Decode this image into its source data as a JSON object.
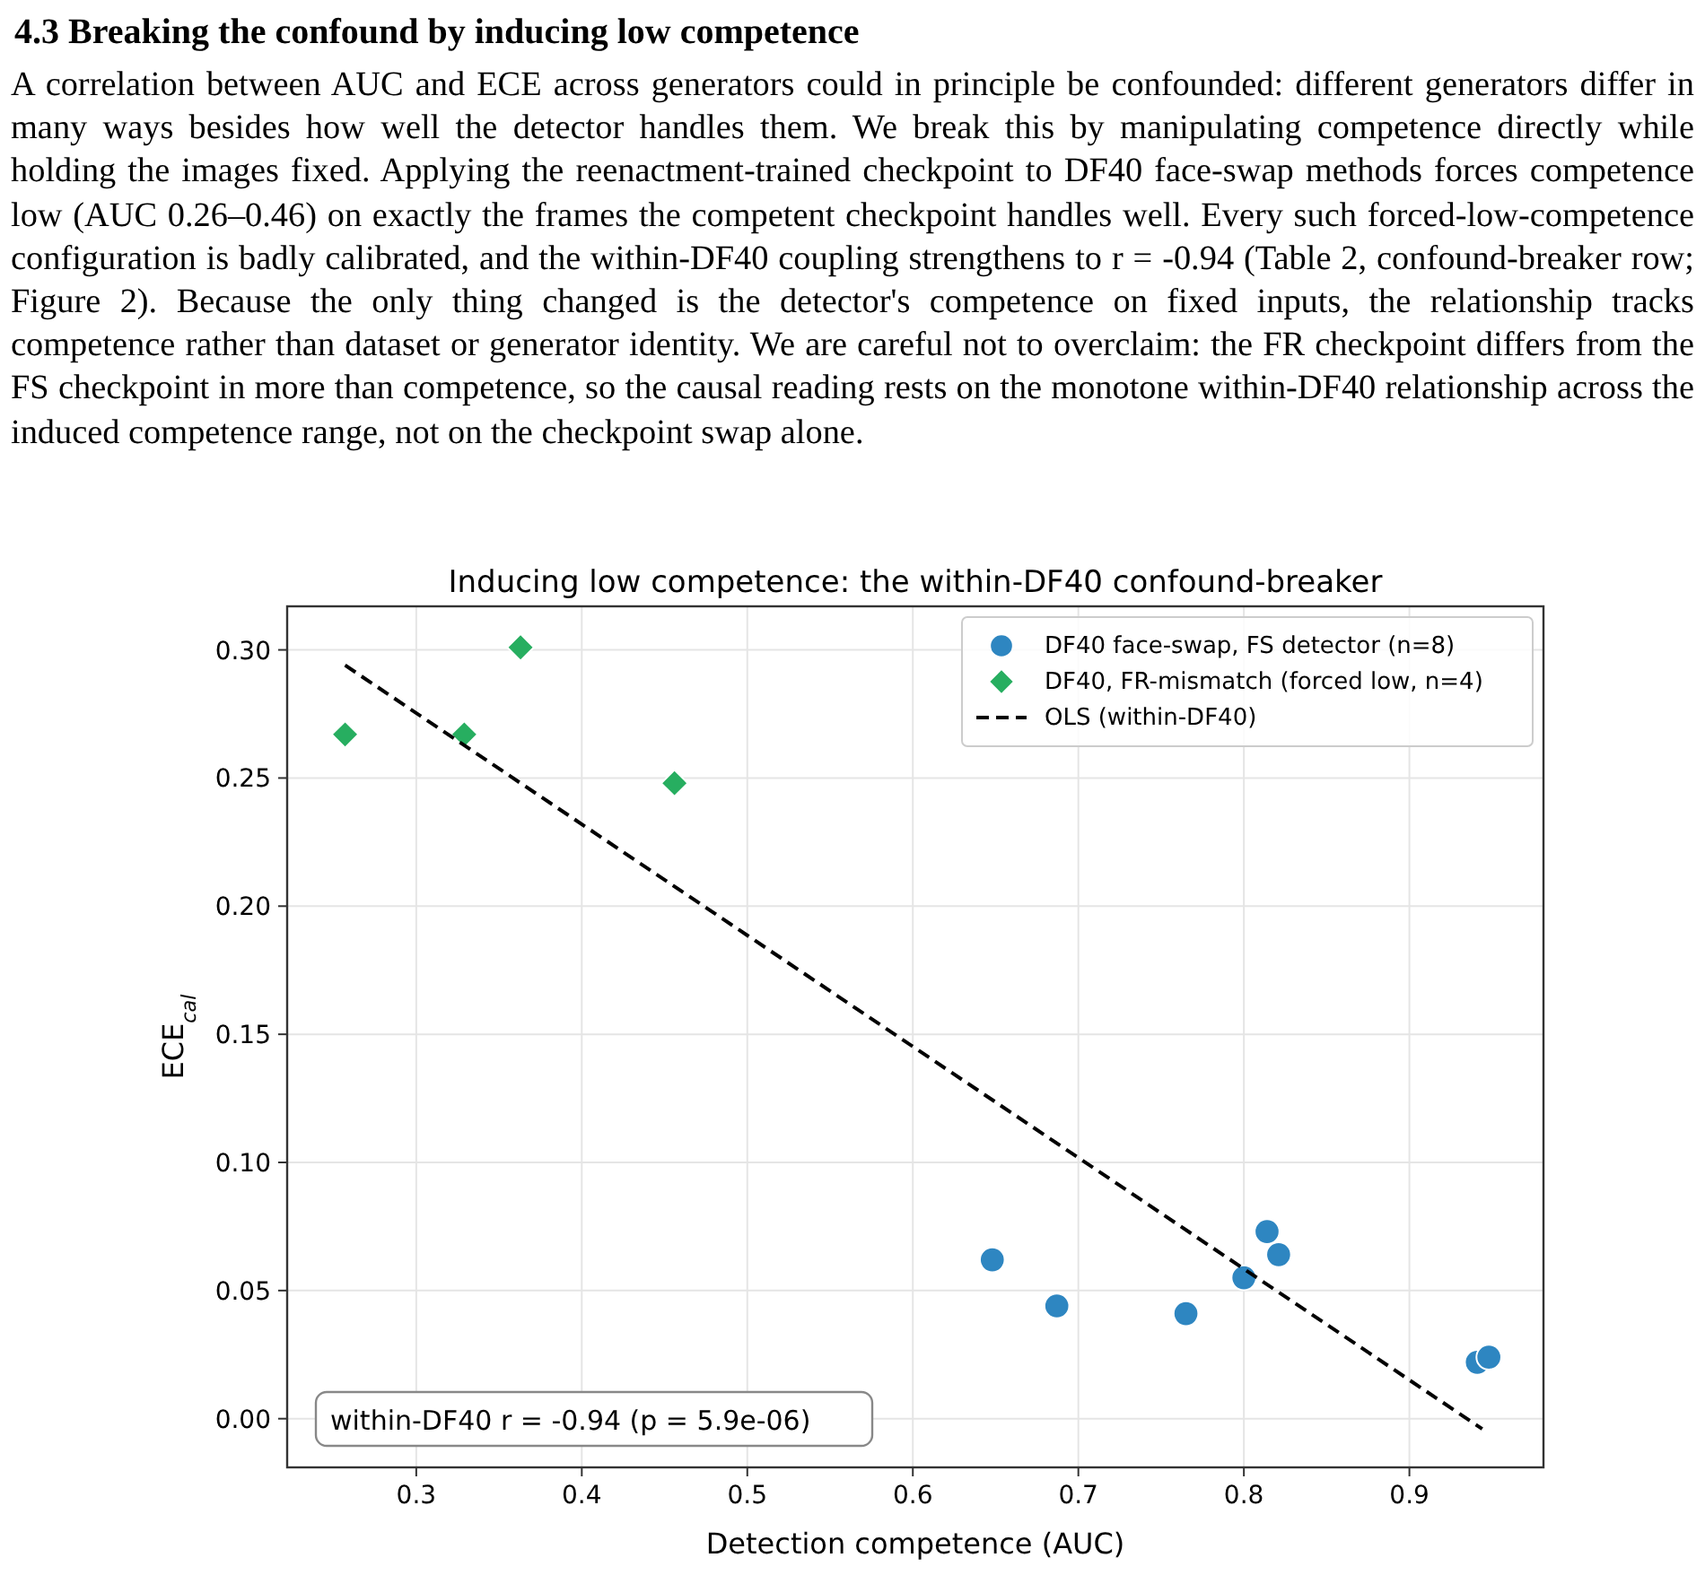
{
  "chart_data": {
    "type": "scatter",
    "title": "Inducing low competence: the within-DF40 confound-breaker",
    "xlabel": "Detection competence (AUC)",
    "ylabel": "ECE$_{cal}$",
    "annotations": [
      "4.3  Breaking the confound by inducing low competence",
      "A correlation between AUC and ECE across generators could in principle be confounded: different generators differ in many ways besides how well the detector handles them. We break this by manipulating competence directly while holding the images fixed. Applying the reenactment-trained checkpoint to DF40 face-swap methods forces competence low (AUC 0.26–0.46) on exactly the frames the competent checkpoint handles well. Every such forced-low-competence configuration is badly calibrated, and the within-DF40 coupling strengthens to r = -0.94 (Table 2, confound-breaker row; Figure 2). Because the only thing changed is the detector's competence on fixed inputs, the relationship tracks competence rather than dataset or generator identity. We are careful not to overclaim: the FR checkpoint differs from the FS checkpoint in more than competence, so the causal reading rests on the monotone within-DF40 relationship across the induced competence range, not on the checkpoint swap alone.",
      "within-DF40 r = -0.94  (p = 5.9e-06)"
    ],
    "xlim": [
      0.222,
      0.981
    ],
    "ylim": [
      -0.019,
      0.317
    ],
    "xticks": [
      0.3,
      0.4,
      0.5,
      0.6,
      0.7,
      0.8,
      0.9
    ],
    "yticks": [
      {
        "value": 0,
        "label": "0.00"
      },
      {
        "value": 0.05,
        "label": "0.05"
      },
      {
        "value": 0.1,
        "label": "0.10"
      },
      {
        "value": 0.15,
        "label": "0.15"
      },
      {
        "value": 0.2,
        "label": "0.20"
      },
      {
        "value": 0.25,
        "label": "0.25"
      },
      {
        "value": 0.3,
        "label": "0.30"
      }
    ],
    "grid": true,
    "legend": "top right",
    "series": [
      {
        "name": "DF40 face-swap, FS detector (n=8)",
        "color": "#2e86c1",
        "marker": "circle",
        "x": [
          0.648,
          0.687,
          0.765,
          0.8,
          0.814,
          0.821,
          0.941,
          0.948
        ],
        "values": [
          0.062,
          0.044,
          0.041,
          0.055,
          0.073,
          0.064,
          0.022,
          0.024
        ]
      },
      {
        "name": "DF40, FR-mismatch (forced low, n=4)",
        "color": "#27ae60",
        "marker": "diamond",
        "x": [
          0.257,
          0.329,
          0.363,
          0.456
        ],
        "values": [
          0.267,
          0.267,
          0.301,
          0.248
        ]
      },
      {
        "name": "OLS (within-DF40)",
        "type": "line",
        "color": "#000000",
        "line_style": "dashed",
        "marker": "none",
        "x": [
          0.257,
          0.944
        ],
        "values": [
          0.294,
          -0.004
        ]
      }
    ]
  }
}
